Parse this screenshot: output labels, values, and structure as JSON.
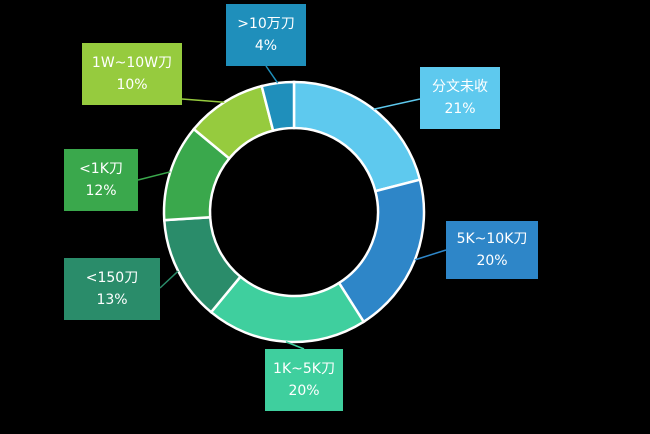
{
  "chart_data": {
    "type": "pie",
    "donut": true,
    "legend": "none",
    "categories": [
      "分文未收",
      "5K~10K刀",
      "1K~5K刀",
      "<150刀",
      "<1K刀",
      "1W~10W刀",
      ">10万刀"
    ],
    "values": [
      21,
      20,
      20,
      13,
      12,
      10,
      4
    ],
    "value_labels": [
      "21%",
      "20%",
      "20%",
      "13%",
      "12%",
      "10%",
      "4%"
    ],
    "colors": [
      "#5ec9ee",
      "#2e86c8",
      "#3fcf9e",
      "#2a8c6a",
      "#3aa84c",
      "#96cb3e",
      "#1f8fbb"
    ],
    "label_colors": [
      "#5ec9ee",
      "#2e86c8",
      "#3fcf9e",
      "#2a8c6a",
      "#3aa84c",
      "#96cb3e",
      "#1f8fbb"
    ]
  }
}
